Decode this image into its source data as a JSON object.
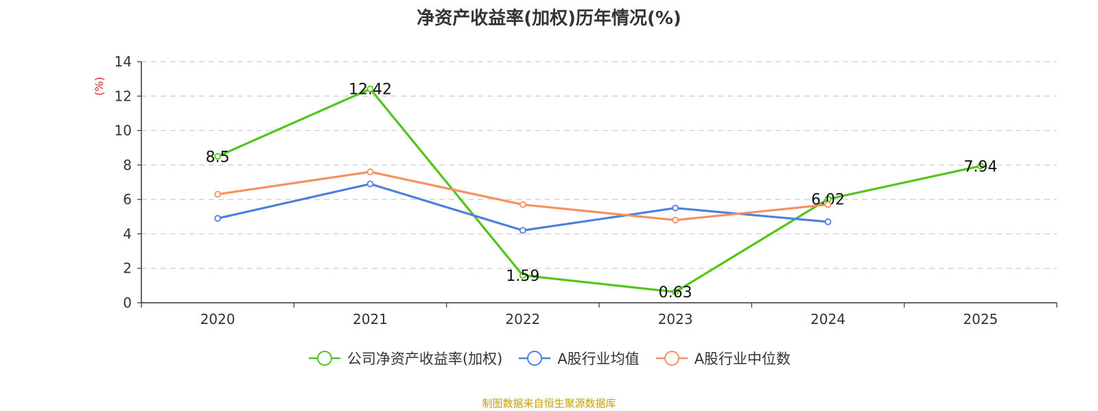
{
  "chart_data": {
    "type": "line",
    "title": "净资产收益率(加权)历年情况(%)",
    "ylabel": "(%)",
    "xlabel": "",
    "categories": [
      "2020",
      "2021",
      "2022",
      "2023",
      "2024",
      "2025"
    ],
    "ylim": [
      0,
      14
    ],
    "yticks": [
      0,
      2,
      4,
      6,
      8,
      10,
      12,
      14
    ],
    "grid": true,
    "legend_position": "bottom",
    "series": [
      {
        "name": "公司净资产收益率(加权)",
        "color": "#52c41a",
        "values": [
          8.5,
          12.42,
          1.59,
          0.63,
          6.02,
          7.94
        ],
        "labels": [
          "8.5",
          "12.42",
          "1.59",
          "0.63",
          "6.02",
          "7.94"
        ]
      },
      {
        "name": "A股行业均值",
        "color": "#4e7fdd",
        "values": [
          4.9,
          6.9,
          4.2,
          5.5,
          4.7,
          null
        ]
      },
      {
        "name": "A股行业中位数",
        "color": "#f79060",
        "values": [
          6.3,
          7.6,
          5.7,
          4.8,
          5.7,
          null
        ]
      }
    ]
  },
  "source": "制图数据来自恒生聚源数据库"
}
